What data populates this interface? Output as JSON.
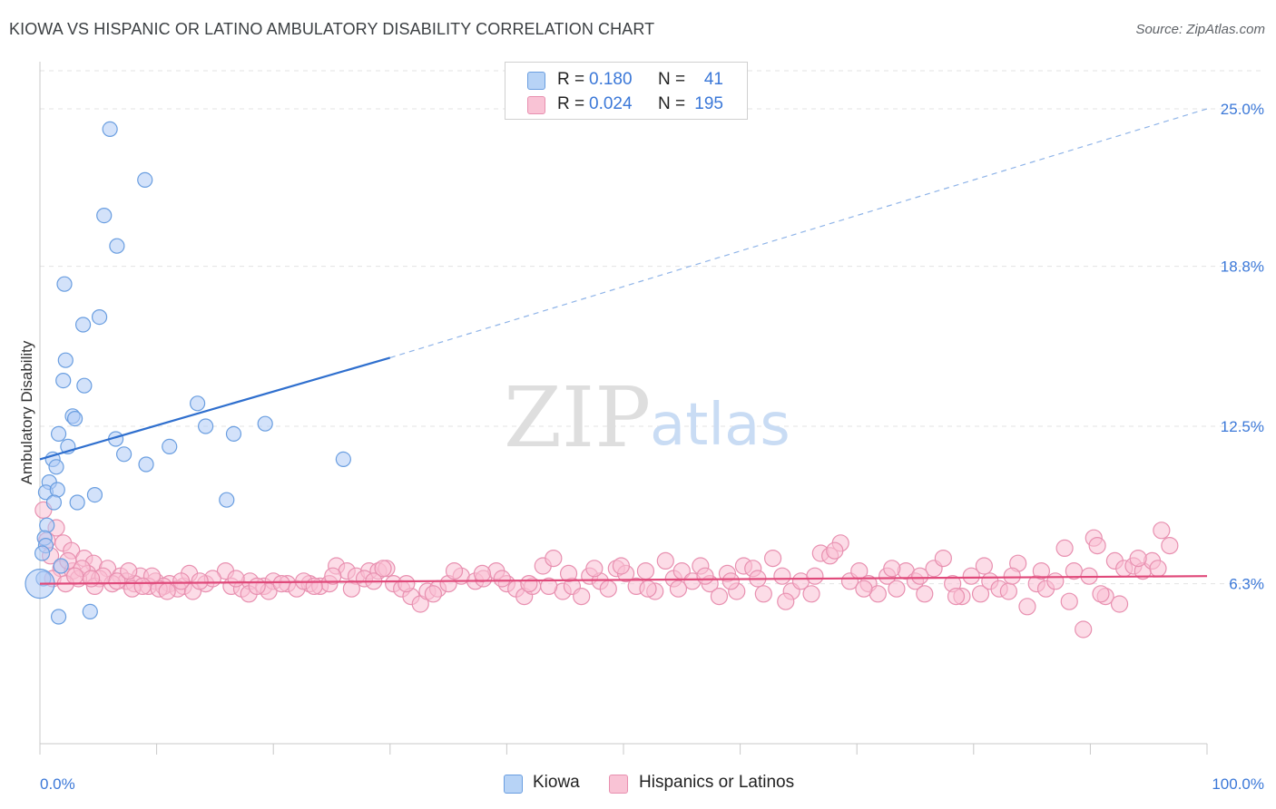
{
  "header": {
    "title": "KIOWA VS HISPANIC OR LATINO AMBULATORY DISABILITY CORRELATION CHART",
    "source": "Source: ZipAtlas.com"
  },
  "watermark": {
    "zip": "ZIP",
    "atlas": "atlas"
  },
  "legend_top": {
    "rows": [
      {
        "r_label": "R =",
        "r_value": "0.180",
        "n_label": "N =",
        "n_value": "41"
      },
      {
        "r_label": "R =",
        "r_value": "0.024",
        "n_label": "N =",
        "n_value": "195"
      }
    ]
  },
  "legend_bottom": {
    "items": [
      "Kiowa",
      "Hispanics or Latinos"
    ]
  },
  "colors": {
    "kiowa_fill": "#aecbf5",
    "kiowa_stroke": "#6a9ee0",
    "kiowa_line": "#2f6fce",
    "hisp_fill": "#f9c0d3",
    "hisp_stroke": "#e890b0",
    "hisp_line": "#e0497a",
    "axis_text": "#3b78d8",
    "grid": "#e3e3e3"
  },
  "chart_data": {
    "type": "scatter",
    "title": "KIOWA VS HISPANIC OR LATINO AMBULATORY DISABILITY CORRELATION CHART",
    "xlabel": "",
    "ylabel": "Ambulatory Disability",
    "xlim": [
      0,
      100
    ],
    "ylim": [
      0,
      26.5
    ],
    "x_tick_labels": [
      "0.0%",
      "100.0%"
    ],
    "y_ticks": [
      6.3,
      12.5,
      18.8,
      25.0
    ],
    "y_tick_labels": [
      "6.3%",
      "12.5%",
      "18.8%",
      "25.0%"
    ],
    "series": [
      {
        "name": "Kiowa",
        "R": 0.18,
        "N": 41,
        "trend": {
          "x0": 0,
          "y0": 11.2,
          "x1": 30,
          "y1": 15.2,
          "dashed_to_x": 100,
          "dashed_to_y": 25.0
        },
        "points": [
          [
            6.0,
            24.2
          ],
          [
            9.0,
            22.2
          ],
          [
            5.5,
            20.8
          ],
          [
            6.6,
            19.6
          ],
          [
            2.1,
            18.1
          ],
          [
            5.1,
            16.8
          ],
          [
            3.7,
            16.5
          ],
          [
            2.2,
            15.1
          ],
          [
            2.0,
            14.3
          ],
          [
            3.8,
            14.1
          ],
          [
            2.8,
            12.9
          ],
          [
            3.0,
            12.8
          ],
          [
            13.5,
            13.4
          ],
          [
            19.3,
            12.6
          ],
          [
            14.2,
            12.5
          ],
          [
            1.6,
            12.2
          ],
          [
            16.6,
            12.2
          ],
          [
            6.5,
            12.0
          ],
          [
            2.4,
            11.7
          ],
          [
            11.1,
            11.7
          ],
          [
            7.2,
            11.4
          ],
          [
            1.1,
            11.2
          ],
          [
            26.0,
            11.2
          ],
          [
            1.4,
            10.9
          ],
          [
            9.1,
            11.0
          ],
          [
            0.8,
            10.3
          ],
          [
            0.5,
            9.9
          ],
          [
            1.5,
            10.0
          ],
          [
            4.7,
            9.8
          ],
          [
            1.2,
            9.5
          ],
          [
            3.2,
            9.5
          ],
          [
            16.0,
            9.6
          ],
          [
            0.6,
            8.6
          ],
          [
            0.4,
            8.1
          ],
          [
            0.5,
            7.8
          ],
          [
            0.2,
            7.5
          ],
          [
            1.8,
            7.0
          ],
          [
            0.3,
            6.5
          ],
          [
            0.0,
            6.3
          ],
          [
            1.6,
            5.0
          ],
          [
            4.3,
            5.2
          ]
        ]
      },
      {
        "name": "Hispanics or Latinos",
        "R": 0.024,
        "N": 195,
        "trend": {
          "x0": 0,
          "y0": 6.3,
          "x1": 100,
          "y1": 6.6
        },
        "points": [
          [
            0.3,
            9.2
          ],
          [
            1.4,
            8.5
          ],
          [
            0.6,
            8.0
          ],
          [
            2.0,
            7.9
          ],
          [
            2.7,
            7.6
          ],
          [
            3.8,
            7.3
          ],
          [
            4.6,
            7.1
          ],
          [
            1.8,
            6.9
          ],
          [
            5.8,
            6.9
          ],
          [
            2.8,
            6.8
          ],
          [
            4.1,
            6.7
          ],
          [
            6.9,
            6.6
          ],
          [
            8.6,
            6.6
          ],
          [
            3.3,
            6.5
          ],
          [
            5.1,
            6.5
          ],
          [
            7.4,
            6.4
          ],
          [
            9.9,
            6.4
          ],
          [
            6.2,
            6.3
          ],
          [
            8.1,
            6.3
          ],
          [
            11.1,
            6.3
          ],
          [
            4.7,
            6.2
          ],
          [
            9.3,
            6.2
          ],
          [
            10.6,
            6.2
          ],
          [
            12.3,
            6.2
          ],
          [
            7.9,
            6.1
          ],
          [
            11.8,
            6.1
          ],
          [
            13.1,
            6.0
          ],
          [
            10.2,
            6.1
          ],
          [
            12.8,
            6.7
          ],
          [
            15.9,
            6.8
          ],
          [
            14.2,
            6.3
          ],
          [
            16.4,
            6.2
          ],
          [
            17.3,
            6.1
          ],
          [
            18.0,
            6.4
          ],
          [
            19.2,
            6.2
          ],
          [
            20.0,
            6.4
          ],
          [
            21.2,
            6.3
          ],
          [
            22.0,
            6.1
          ],
          [
            23.1,
            6.3
          ],
          [
            24.0,
            6.2
          ],
          [
            24.8,
            6.3
          ],
          [
            25.4,
            7.0
          ],
          [
            26.3,
            6.8
          ],
          [
            27.1,
            6.6
          ],
          [
            28.2,
            6.8
          ],
          [
            29.0,
            6.8
          ],
          [
            29.7,
            6.9
          ],
          [
            30.3,
            6.3
          ],
          [
            31.0,
            6.1
          ],
          [
            31.8,
            5.8
          ],
          [
            32.6,
            5.5
          ],
          [
            33.2,
            6.0
          ],
          [
            34.1,
            6.1
          ],
          [
            35.0,
            6.3
          ],
          [
            36.1,
            6.6
          ],
          [
            37.3,
            6.4
          ],
          [
            38.0,
            6.5
          ],
          [
            39.1,
            6.8
          ],
          [
            40.0,
            6.3
          ],
          [
            40.8,
            6.1
          ],
          [
            41.5,
            5.8
          ],
          [
            42.2,
            6.2
          ],
          [
            43.1,
            7.0
          ],
          [
            44.0,
            7.3
          ],
          [
            44.8,
            6.0
          ],
          [
            45.6,
            6.2
          ],
          [
            46.4,
            5.8
          ],
          [
            47.1,
            6.6
          ],
          [
            48.0,
            6.4
          ],
          [
            48.7,
            6.1
          ],
          [
            49.4,
            6.9
          ],
          [
            50.2,
            6.7
          ],
          [
            51.1,
            6.2
          ],
          [
            51.9,
            6.8
          ],
          [
            52.7,
            6.0
          ],
          [
            53.6,
            7.2
          ],
          [
            54.3,
            6.5
          ],
          [
            55.0,
            6.8
          ],
          [
            55.9,
            6.4
          ],
          [
            56.6,
            7.0
          ],
          [
            57.4,
            6.3
          ],
          [
            58.2,
            5.8
          ],
          [
            58.9,
            6.7
          ],
          [
            59.7,
            6.0
          ],
          [
            60.3,
            7.0
          ],
          [
            61.1,
            6.9
          ],
          [
            62.0,
            5.9
          ],
          [
            62.8,
            7.3
          ],
          [
            63.6,
            6.6
          ],
          [
            64.4,
            6.0
          ],
          [
            65.2,
            6.4
          ],
          [
            66.1,
            5.9
          ],
          [
            66.9,
            7.5
          ],
          [
            67.7,
            7.4
          ],
          [
            68.6,
            7.9
          ],
          [
            69.4,
            6.4
          ],
          [
            70.2,
            6.8
          ],
          [
            71.0,
            6.3
          ],
          [
            71.8,
            5.9
          ],
          [
            72.6,
            6.6
          ],
          [
            73.4,
            6.1
          ],
          [
            74.2,
            6.8
          ],
          [
            75.0,
            6.4
          ],
          [
            75.8,
            5.9
          ],
          [
            76.6,
            6.9
          ],
          [
            77.4,
            7.3
          ],
          [
            78.2,
            6.3
          ],
          [
            79.0,
            5.8
          ],
          [
            79.8,
            6.6
          ],
          [
            80.6,
            5.9
          ],
          [
            81.4,
            6.4
          ],
          [
            82.2,
            6.1
          ],
          [
            83.0,
            6.0
          ],
          [
            83.8,
            7.1
          ],
          [
            84.6,
            5.4
          ],
          [
            85.4,
            6.3
          ],
          [
            86.2,
            6.1
          ],
          [
            87.0,
            6.4
          ],
          [
            87.8,
            7.7
          ],
          [
            88.6,
            6.8
          ],
          [
            89.4,
            4.5
          ],
          [
            89.9,
            6.6
          ],
          [
            90.3,
            8.1
          ],
          [
            90.6,
            7.8
          ],
          [
            91.3,
            5.8
          ],
          [
            92.1,
            7.2
          ],
          [
            92.9,
            6.9
          ],
          [
            93.7,
            7.0
          ],
          [
            94.5,
            6.8
          ],
          [
            95.3,
            7.2
          ],
          [
            96.1,
            8.4
          ],
          [
            96.8,
            7.8
          ],
          [
            0.9,
            7.4
          ],
          [
            2.4,
            7.2
          ],
          [
            3.6,
            6.9
          ],
          [
            5.4,
            6.6
          ],
          [
            6.6,
            6.4
          ],
          [
            7.6,
            6.8
          ],
          [
            9.6,
            6.6
          ],
          [
            12.1,
            6.4
          ],
          [
            14.8,
            6.5
          ],
          [
            17.9,
            5.9
          ],
          [
            19.6,
            6.0
          ],
          [
            22.6,
            6.4
          ],
          [
            25.1,
            6.6
          ],
          [
            27.8,
            6.5
          ],
          [
            29.4,
            6.9
          ],
          [
            31.4,
            6.3
          ],
          [
            33.7,
            5.9
          ],
          [
            35.5,
            6.8
          ],
          [
            37.9,
            6.7
          ],
          [
            39.6,
            6.5
          ],
          [
            41.9,
            6.3
          ],
          [
            43.6,
            6.2
          ],
          [
            45.3,
            6.7
          ],
          [
            47.5,
            6.9
          ],
          [
            49.8,
            7.0
          ],
          [
            52.1,
            6.1
          ],
          [
            54.7,
            6.1
          ],
          [
            57.0,
            6.6
          ],
          [
            59.2,
            6.4
          ],
          [
            61.5,
            6.5
          ],
          [
            63.9,
            5.6
          ],
          [
            66.4,
            6.6
          ],
          [
            68.1,
            7.6
          ],
          [
            70.6,
            6.1
          ],
          [
            73.0,
            6.9
          ],
          [
            75.4,
            6.6
          ],
          [
            78.5,
            5.8
          ],
          [
            80.9,
            7.0
          ],
          [
            83.3,
            6.6
          ],
          [
            85.8,
            6.8
          ],
          [
            88.2,
            5.6
          ],
          [
            90.9,
            5.9
          ],
          [
            92.5,
            5.5
          ],
          [
            94.1,
            7.3
          ],
          [
            95.8,
            6.9
          ],
          [
            1.1,
            6.5
          ],
          [
            2.2,
            6.3
          ],
          [
            3.0,
            6.6
          ],
          [
            4.4,
            6.5
          ],
          [
            8.8,
            6.2
          ],
          [
            10.9,
            6.0
          ],
          [
            13.7,
            6.4
          ],
          [
            16.8,
            6.5
          ],
          [
            18.6,
            6.2
          ],
          [
            20.7,
            6.3
          ],
          [
            23.5,
            6.2
          ],
          [
            26.7,
            6.1
          ],
          [
            28.6,
            6.4
          ]
        ]
      }
    ]
  }
}
